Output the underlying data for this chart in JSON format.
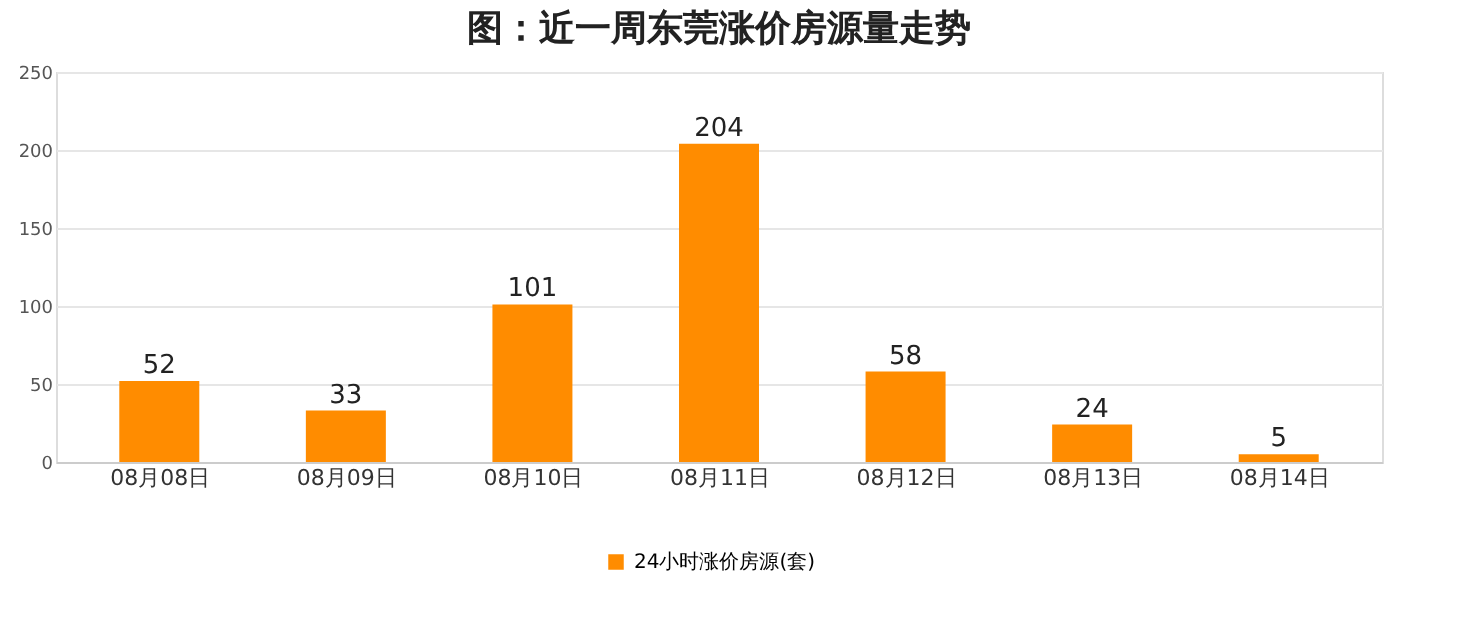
{
  "chart_data": {
    "type": "bar",
    "title": "图：近一周东莞涨价房源量走势",
    "categories": [
      "08月08日",
      "08月09日",
      "08月10日",
      "08月11日",
      "08月12日",
      "08月13日",
      "08月14日"
    ],
    "series": [
      {
        "name": "24小时涨价房源(套)",
        "color": "#ff8c00",
        "values": [
          52,
          33,
          101,
          204,
          58,
          24,
          5
        ]
      }
    ],
    "ylim": [
      0,
      250
    ],
    "yticks": [
      0,
      50,
      100,
      150,
      200,
      250
    ],
    "grid": "y",
    "legend": "bottom",
    "data_labels": true
  }
}
